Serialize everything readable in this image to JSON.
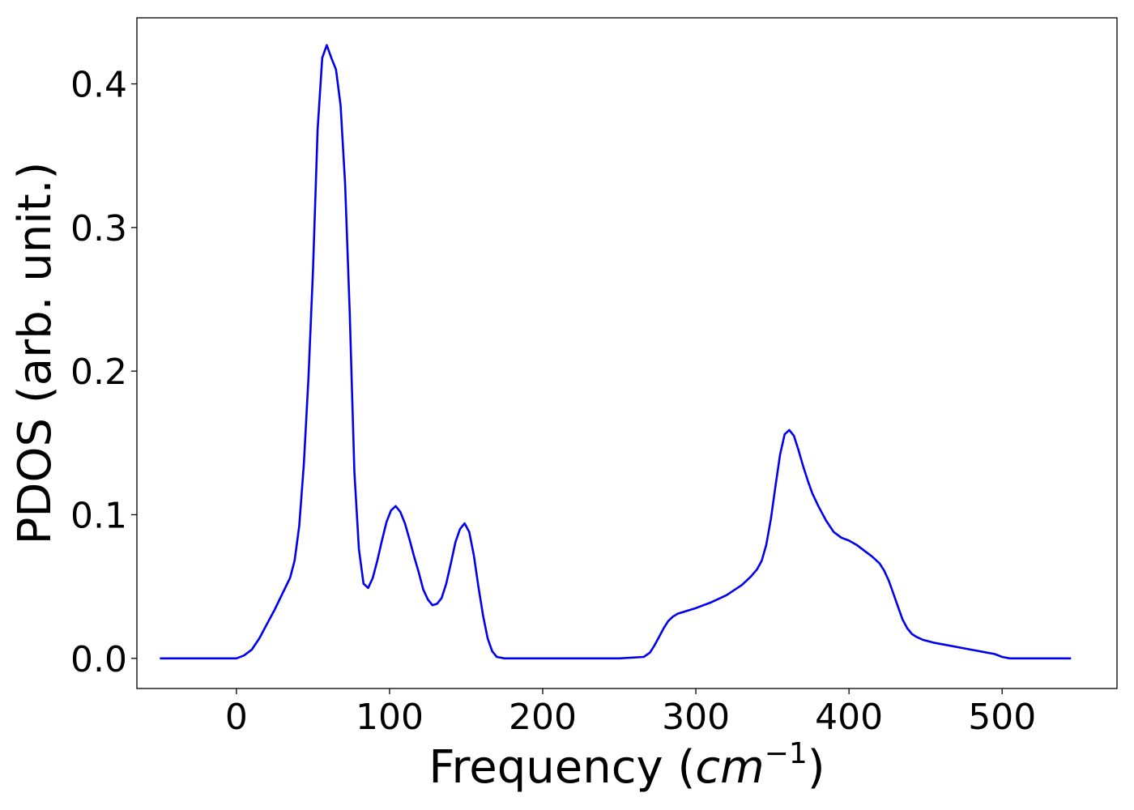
{
  "chart_data": {
    "type": "line",
    "title": "",
    "xlabel_main": "Frequency (",
    "xlabel_math": "cm",
    "xlabel_sup": "−1",
    "xlabel_close": ")",
    "ylabel": "PDOS (arb. unit.)",
    "xlim": [
      -65,
      575
    ],
    "ylim": [
      -0.021,
      0.446
    ],
    "xticks": [
      0,
      100,
      200,
      300,
      400,
      500
    ],
    "xtick_labels": [
      "0",
      "100",
      "200",
      "300",
      "400",
      "500"
    ],
    "yticks": [
      0.0,
      0.1,
      0.2,
      0.3,
      0.4
    ],
    "ytick_labels": [
      "0.0",
      "0.1",
      "0.2",
      "0.3",
      "0.4"
    ],
    "grid": false,
    "line_color": "#0000ee",
    "series": [
      {
        "x": [
          -50,
          -20,
          0,
          5,
          10,
          15,
          20,
          25,
          30,
          35,
          38,
          41,
          44,
          47,
          50,
          53,
          56,
          59,
          62,
          65,
          68,
          71,
          74,
          77,
          80,
          83,
          86,
          89,
          92,
          95,
          98,
          101,
          104,
          107,
          110,
          113,
          116,
          119,
          122,
          125,
          128,
          131,
          134,
          137,
          140,
          143,
          146,
          149,
          152,
          155,
          158,
          161,
          164,
          167,
          170,
          175,
          200,
          250,
          266,
          270,
          273,
          276,
          279,
          282,
          285,
          288,
          291,
          294,
          300,
          310,
          320,
          330,
          336,
          340,
          343,
          346,
          349,
          352,
          355,
          358,
          361,
          364,
          367,
          370,
          373,
          376,
          380,
          385,
          390,
          395,
          400,
          405,
          410,
          415,
          420,
          423,
          426,
          429,
          432,
          435,
          438,
          441,
          444,
          448,
          455,
          465,
          475,
          485,
          490,
          495,
          500,
          505,
          520,
          545
        ],
        "y": [
          0.0,
          0.0,
          0.0,
          0.002,
          0.006,
          0.014,
          0.024,
          0.034,
          0.045,
          0.056,
          0.068,
          0.092,
          0.135,
          0.195,
          0.27,
          0.368,
          0.418,
          0.427,
          0.418,
          0.41,
          0.385,
          0.33,
          0.24,
          0.13,
          0.076,
          0.052,
          0.049,
          0.056,
          0.068,
          0.082,
          0.095,
          0.103,
          0.106,
          0.102,
          0.094,
          0.083,
          0.071,
          0.06,
          0.048,
          0.041,
          0.037,
          0.038,
          0.042,
          0.052,
          0.066,
          0.081,
          0.09,
          0.094,
          0.088,
          0.072,
          0.05,
          0.03,
          0.014,
          0.005,
          0.001,
          0.0,
          0.0,
          0.0,
          0.001,
          0.004,
          0.009,
          0.015,
          0.021,
          0.026,
          0.029,
          0.031,
          0.032,
          0.033,
          0.035,
          0.039,
          0.044,
          0.051,
          0.057,
          0.062,
          0.068,
          0.079,
          0.097,
          0.12,
          0.142,
          0.156,
          0.159,
          0.155,
          0.145,
          0.134,
          0.124,
          0.115,
          0.106,
          0.096,
          0.088,
          0.084,
          0.082,
          0.079,
          0.075,
          0.071,
          0.066,
          0.061,
          0.054,
          0.045,
          0.036,
          0.027,
          0.021,
          0.017,
          0.015,
          0.013,
          0.011,
          0.009,
          0.007,
          0.005,
          0.004,
          0.003,
          0.001,
          0.0,
          0.0,
          0.0
        ]
      }
    ]
  }
}
